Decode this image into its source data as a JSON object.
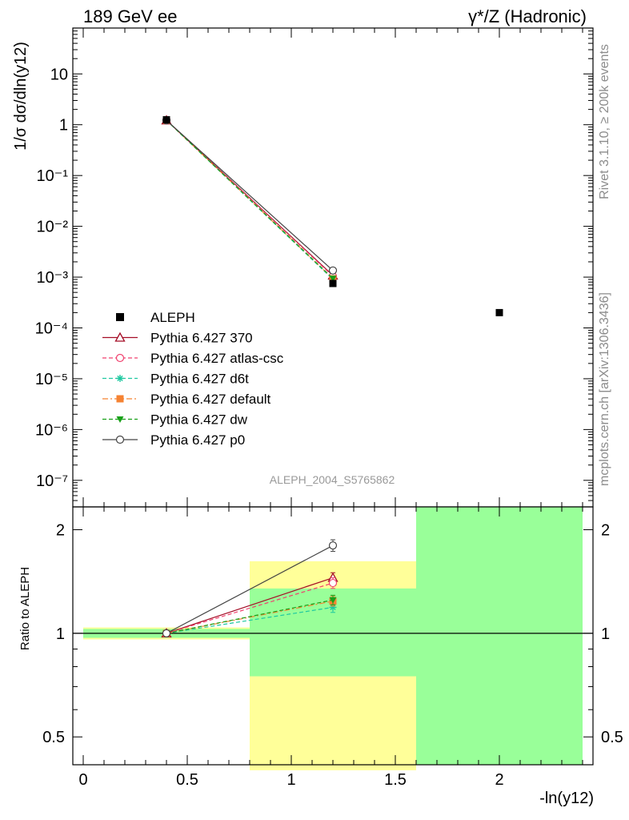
{
  "header": {
    "left": "189 GeV ee",
    "right": "γ*/Z (Hadronic)"
  },
  "side_labels": {
    "top": "Rivet 3.1.10, ≥ 200k events",
    "bottom": "mcplots.cern.ch [arXiv:1306.3436]"
  },
  "watermark": "ALEPH_2004_S5765862",
  "chart_data": [
    {
      "type": "line",
      "panel": "main",
      "ylabel": "1/σ  dσ/dln(y12)",
      "y_scale": "log",
      "ylim": [
        3e-08,
        80
      ],
      "xlim": [
        -0.05,
        2.45
      ],
      "y_tick_labels": [
        "10⁻⁷",
        "10⁻⁶",
        "10⁻⁵",
        "10⁻⁴",
        "10⁻³",
        "10⁻²",
        "10⁻¹",
        "1",
        "10"
      ],
      "data": {
        "name": "ALEPH",
        "x": [
          0.4,
          1.2,
          2.0
        ],
        "y": [
          1.25,
          0.00075,
          0.0002
        ],
        "color": "#000000",
        "marker": "square"
      },
      "series": [
        {
          "name": "Pythia 6.427 370",
          "x": [
            0.4,
            1.2
          ],
          "y": [
            1.22,
            0.00108
          ],
          "color": "#a50d26",
          "marker": "triangle-open",
          "dash": "solid"
        },
        {
          "name": "Pythia 6.427 atlas-csc",
          "x": [
            0.4,
            1.2
          ],
          "y": [
            1.22,
            0.00104
          ],
          "color": "#f0416e",
          "marker": "circle-open",
          "dash": "dashed"
        },
        {
          "name": "Pythia 6.427 d6t",
          "x": [
            0.4,
            1.2
          ],
          "y": [
            1.22,
            0.0009
          ],
          "color": "#1ec8a0",
          "marker": "star",
          "dash": "dashed"
        },
        {
          "name": "Pythia 6.427 default",
          "x": [
            0.4,
            1.2
          ],
          "y": [
            1.22,
            0.00093
          ],
          "color": "#f58232",
          "marker": "square",
          "dash": "dashdot"
        },
        {
          "name": "Pythia 6.427 dw",
          "x": [
            0.4,
            1.2
          ],
          "y": [
            1.22,
            0.00094
          ],
          "color": "#18a018",
          "marker": "triangle-down",
          "dash": "dashed"
        },
        {
          "name": "Pythia 6.427 p0",
          "x": [
            0.4,
            1.2
          ],
          "y": [
            1.22,
            0.00135
          ],
          "color": "#444444",
          "marker": "circle-open",
          "dash": "solid"
        }
      ],
      "legend_position": "bottom-left"
    },
    {
      "type": "line",
      "panel": "ratio",
      "ylabel": "Ratio to ALEPH",
      "xlabel": "-ln(y12)",
      "y_scale": "log",
      "ylim": [
        0.415,
        2.33
      ],
      "xlim": [
        -0.05,
        2.45
      ],
      "x_tick_labels": [
        "0",
        "0.5",
        "1",
        "1.5",
        "2"
      ],
      "y_tick_labels": [
        "0.5",
        "1",
        "2"
      ],
      "bands": [
        {
          "x0": 0.0,
          "x1": 0.8,
          "yellow": [
            0.96,
            1.04
          ],
          "green": [
            0.97,
            1.03
          ]
        },
        {
          "x0": 0.8,
          "x1": 1.6,
          "yellow": [
            0.4,
            1.62
          ],
          "green": [
            0.75,
            1.35
          ]
        },
        {
          "x0": 1.6,
          "x1": 2.4,
          "yellow": [
            0.415,
            2.33
          ],
          "green": [
            0.415,
            2.33
          ]
        }
      ],
      "series": [
        {
          "name": "Pythia 6.427 370",
          "x": [
            0.4,
            1.2
          ],
          "y": [
            1.0,
            1.45
          ],
          "err": [
            0.01,
            0.05
          ],
          "color": "#a50d26",
          "marker": "triangle-open",
          "dash": "solid"
        },
        {
          "name": "Pythia 6.427 atlas-csc",
          "x": [
            0.4,
            1.2
          ],
          "y": [
            1.0,
            1.4
          ],
          "err": [
            0.01,
            0.05
          ],
          "color": "#f0416e",
          "marker": "circle-open",
          "dash": "dashed"
        },
        {
          "name": "Pythia 6.427 d6t",
          "x": [
            0.4,
            1.2
          ],
          "y": [
            1.0,
            1.19
          ],
          "err": [
            0.01,
            0.04
          ],
          "color": "#1ec8a0",
          "marker": "star",
          "dash": "dashed"
        },
        {
          "name": "Pythia 6.427 default",
          "x": [
            0.4,
            1.2
          ],
          "y": [
            1.0,
            1.24
          ],
          "err": [
            0.01,
            0.04
          ],
          "color": "#f58232",
          "marker": "square",
          "dash": "dashdot"
        },
        {
          "name": "Pythia 6.427 dw",
          "x": [
            0.4,
            1.2
          ],
          "y": [
            1.0,
            1.25
          ],
          "err": [
            0.01,
            0.04
          ],
          "color": "#18a018",
          "marker": "triangle-down",
          "dash": "dashed"
        },
        {
          "name": "Pythia 6.427 p0",
          "x": [
            0.4,
            1.2
          ],
          "y": [
            1.0,
            1.8
          ],
          "err": [
            0.01,
            0.07
          ],
          "color": "#444444",
          "marker": "circle-open",
          "dash": "solid"
        }
      ]
    }
  ]
}
